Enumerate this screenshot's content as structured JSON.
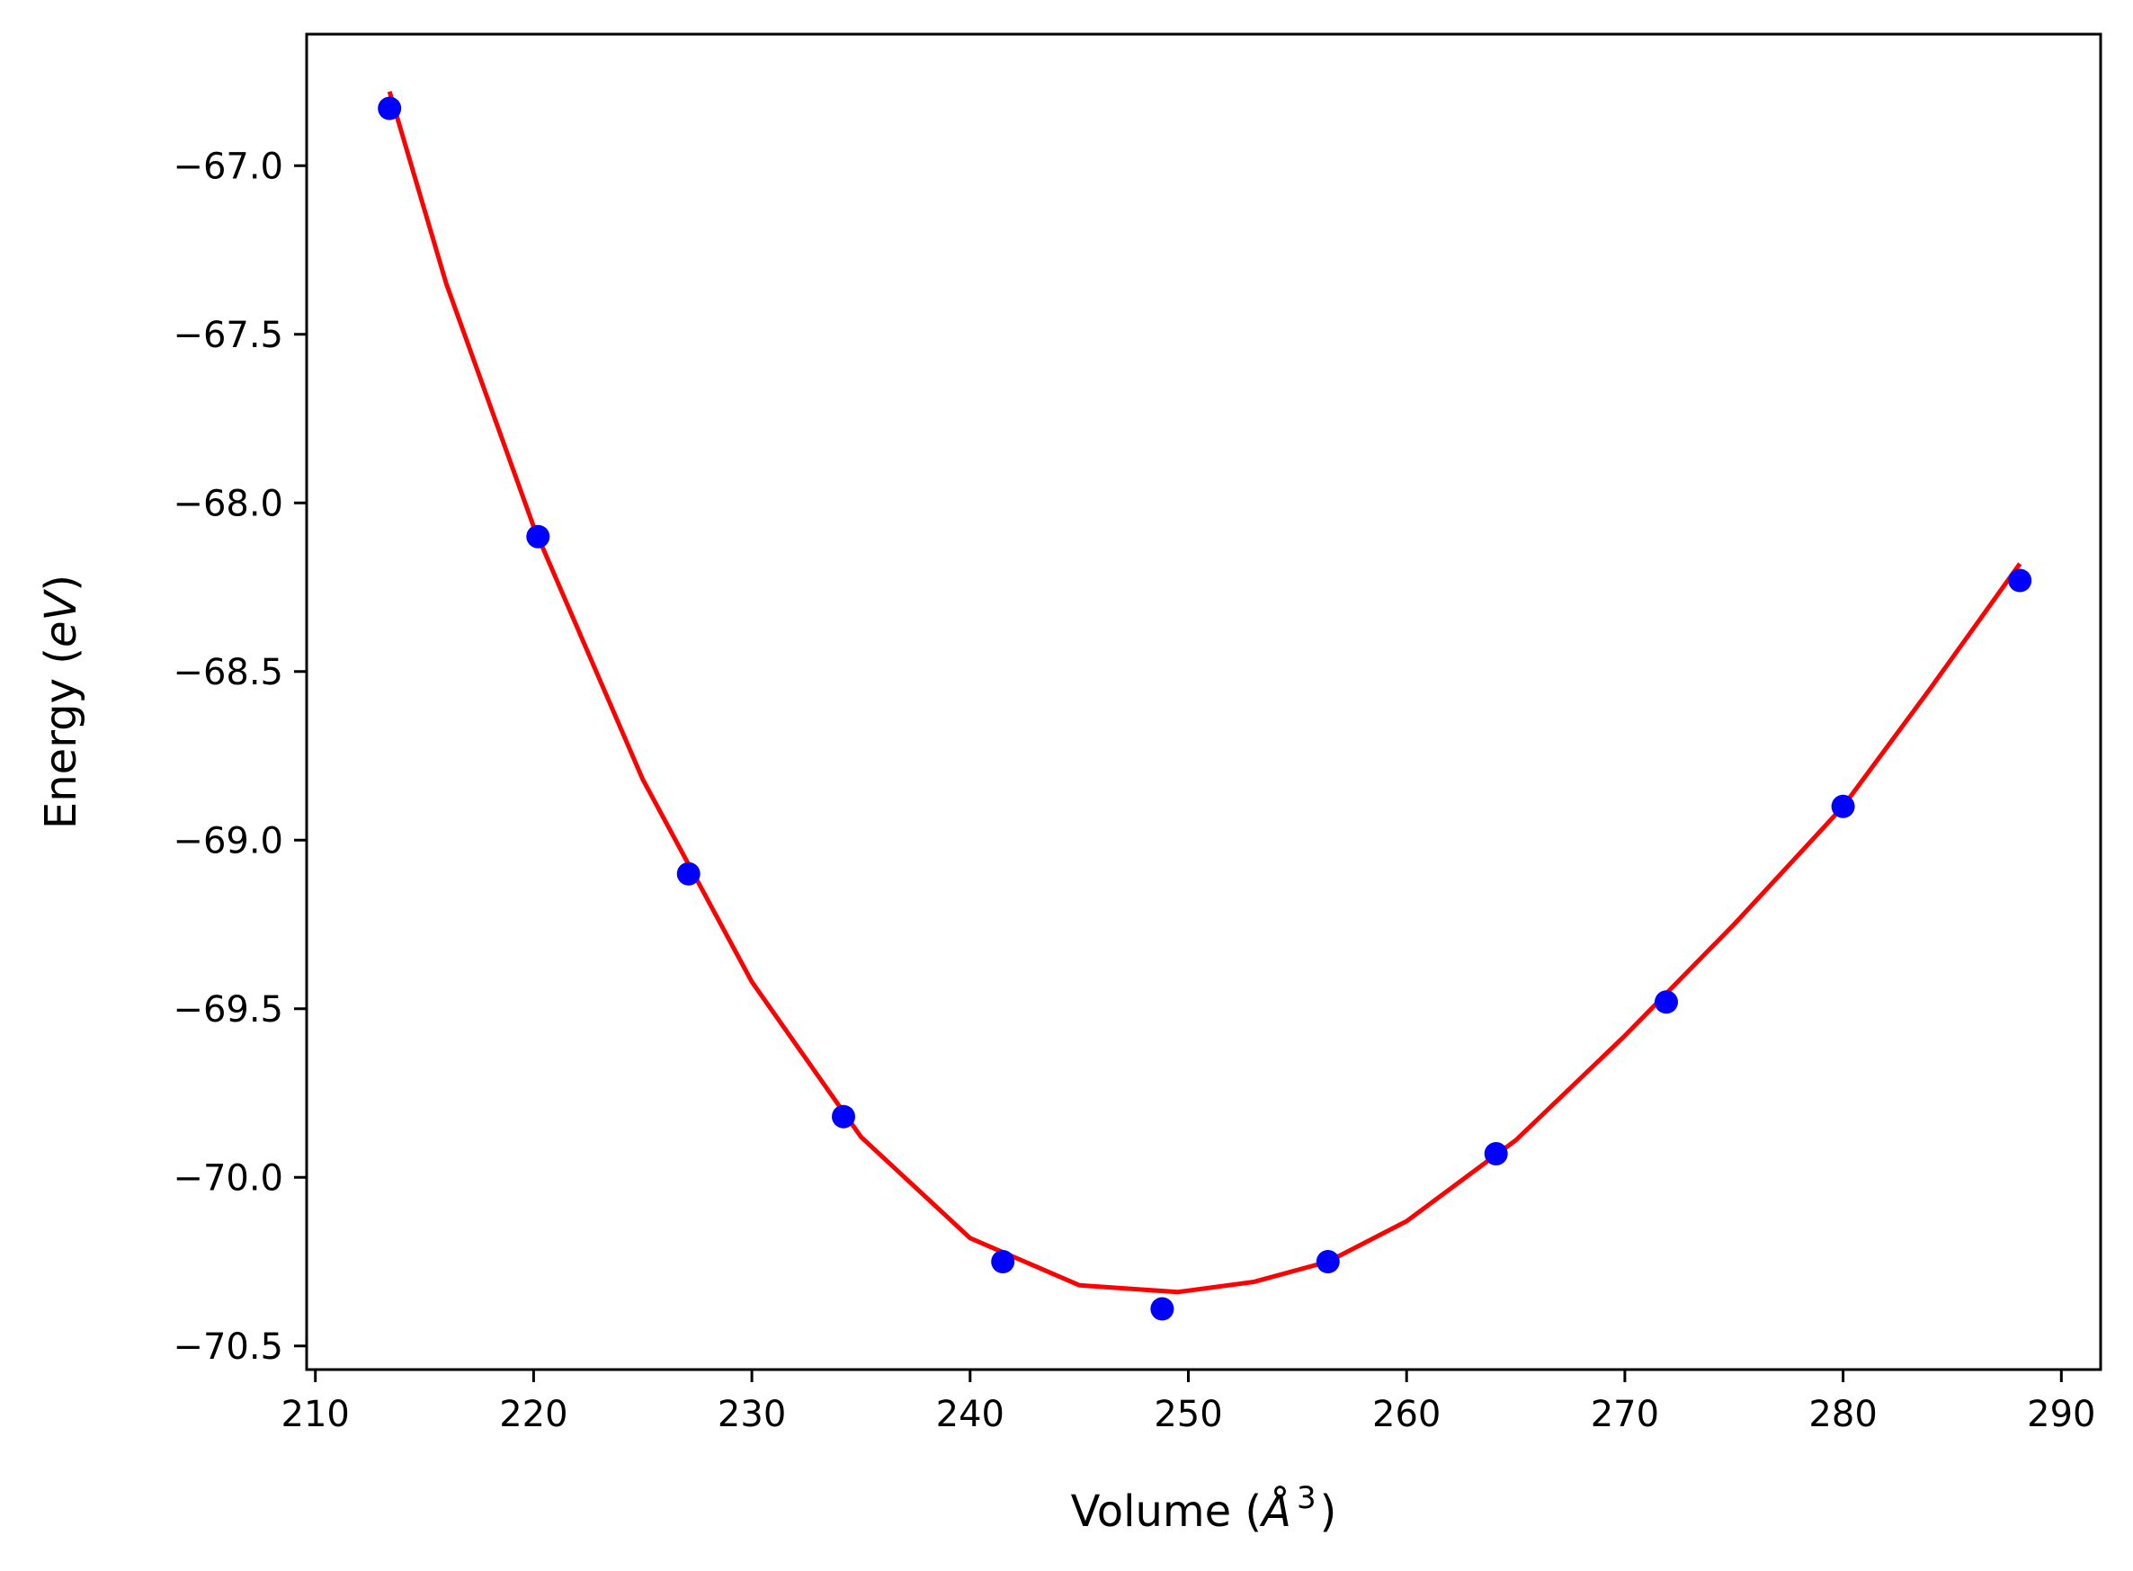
{
  "chart_data": {
    "type": "scatter",
    "xlabel": "Volume (Å³)",
    "xlabel_prefix": "Volume (",
    "xlabel_unit": "Å",
    "xlabel_exp": "3",
    "xlabel_suffix": ")",
    "ylabel": "Energy (eV)",
    "ylabel_prefix": "Energy (",
    "ylabel_unit": "eV",
    "ylabel_suffix": ")",
    "xlim": [
      209.6,
      291.8
    ],
    "ylim": [
      -70.57,
      -66.61
    ],
    "xticks": [
      210,
      220,
      230,
      240,
      250,
      260,
      270,
      280,
      290
    ],
    "yticks": [
      -67.0,
      -67.5,
      -68.0,
      -68.5,
      -69.0,
      -69.5,
      -70.0,
      -70.5
    ],
    "ytick_labels": [
      "−67.0",
      "−67.5",
      "−68.0",
      "−68.5",
      "−69.0",
      "−69.5",
      "−70.0",
      "−70.5"
    ],
    "grid": false,
    "series": [
      {
        "kind": "points",
        "color": "#0000ff",
        "x": [
          213.4,
          220.2,
          227.1,
          234.2,
          241.5,
          248.8,
          256.4,
          264.1,
          271.9,
          280.0,
          288.1
        ],
        "y": [
          -66.83,
          -68.1,
          -69.1,
          -69.82,
          -70.25,
          -70.39,
          -70.25,
          -69.93,
          -69.48,
          -68.9,
          -68.23
        ]
      },
      {
        "kind": "fit-curve",
        "color": "#ff0000",
        "x": [
          213.4,
          216.0,
          220.0,
          225.0,
          230.0,
          235.0,
          240.0,
          245.0,
          249.5,
          253.0,
          256.4,
          260.0,
          265.0,
          270.0,
          275.0,
          280.0,
          284.0,
          288.1
        ],
        "y": [
          -66.78,
          -67.35,
          -68.07,
          -68.82,
          -69.42,
          -69.88,
          -70.18,
          -70.32,
          -70.34,
          -70.31,
          -70.25,
          -70.13,
          -69.89,
          -69.58,
          -69.25,
          -68.9,
          -68.55,
          -68.18
        ]
      }
    ]
  }
}
